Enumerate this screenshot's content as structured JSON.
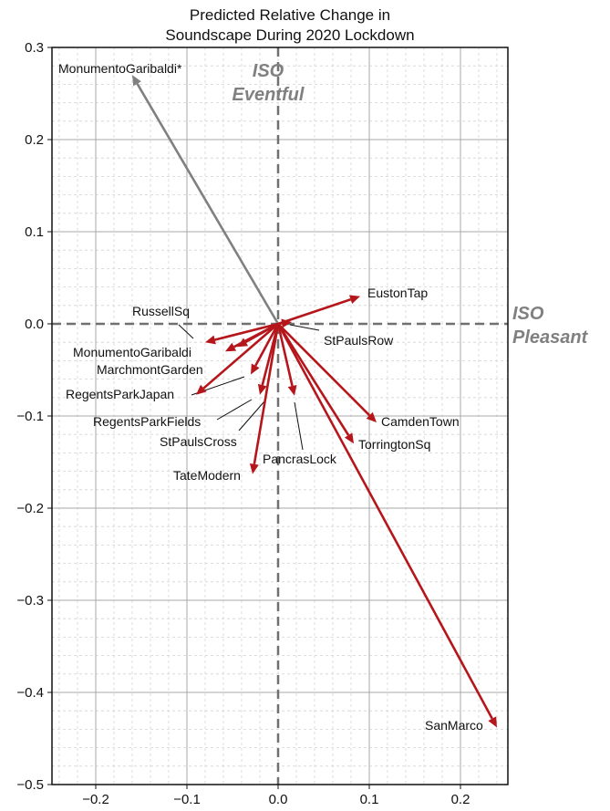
{
  "chart_data": {
    "type": "vector",
    "title": [
      "Predicted Relative Change in",
      "Soundscape During 2020 Lockdown"
    ],
    "axis_labels": {
      "x": "ISO Pleasant",
      "x_lines": [
        "ISO",
        "Pleasant"
      ],
      "y": "ISO Eventful",
      "y_lines": [
        "ISO",
        "Eventful"
      ]
    },
    "xlim": [
      -0.25,
      0.25
    ],
    "ylim": [
      -0.5,
      0.3
    ],
    "xticks": [
      -0.2,
      -0.1,
      0.0,
      0.1,
      0.2
    ],
    "xtick_labels": [
      "−0.2",
      "−0.1",
      "0.0",
      "0.1",
      "0.2"
    ],
    "yticks": [
      0.3,
      0.2,
      0.1,
      0.0,
      -0.1,
      -0.2,
      -0.3,
      -0.4,
      -0.5
    ],
    "ytick_labels": [
      "0.3",
      "0.2",
      "0.1",
      "0.0",
      "−0.1",
      "−0.2",
      "−0.3",
      "−0.4",
      "−0.5"
    ],
    "grid": true,
    "minor_grid": true,
    "colors": {
      "vector": "#b5161b",
      "vector_special": "#808080",
      "quadrant_lines": "#707070"
    },
    "series": [
      {
        "name": "MonumentoGaribaldi*",
        "dx": -0.16,
        "dy": 0.27,
        "special": true
      },
      {
        "name": "EustonTap",
        "dx": 0.09,
        "dy": 0.03
      },
      {
        "name": "StPaulsRow",
        "dx": 0.015,
        "dy": 0.002
      },
      {
        "name": "RussellSq",
        "dx": -0.08,
        "dy": -0.02
      },
      {
        "name": "MonumentoGaribaldi",
        "dx": -0.058,
        "dy": -0.03
      },
      {
        "name": "MarchmontGarden",
        "dx": -0.045,
        "dy": -0.025
      },
      {
        "name": "RegentsParkJapan",
        "dx": -0.09,
        "dy": -0.077
      },
      {
        "name": "RegentsParkFields",
        "dx": -0.03,
        "dy": -0.055
      },
      {
        "name": "StPaulsCross",
        "dx": -0.02,
        "dy": -0.077
      },
      {
        "name": "PancrasLock",
        "dx": 0.018,
        "dy": -0.078
      },
      {
        "name": "TateModern",
        "dx": -0.028,
        "dy": -0.163
      },
      {
        "name": "CamdenTown",
        "dx": 0.108,
        "dy": -0.107
      },
      {
        "name": "TorringtonSq",
        "dx": 0.083,
        "dy": -0.13
      },
      {
        "name": "SanMarco",
        "dx": 0.24,
        "dy": -0.438
      }
    ]
  }
}
